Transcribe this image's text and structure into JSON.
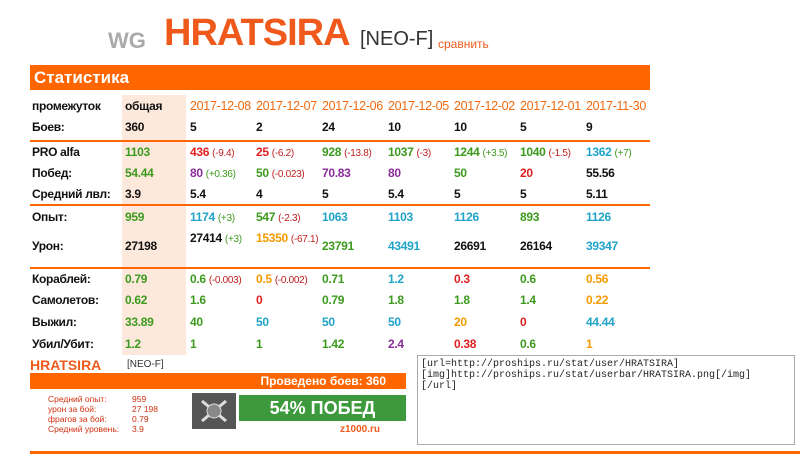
{
  "header": {
    "wg": "WG",
    "name": "HRATSIRA",
    "tag": "[NEO-F]",
    "compare": "сравнить"
  },
  "table": {
    "title": "Статистика",
    "header": [
      "промежуток",
      "общая",
      "2017-12-08",
      "2017-12-07",
      "2017-12-06",
      "2017-12-05",
      "2017-12-02",
      "2017-12-01",
      "2017-11-30"
    ],
    "rows": [
      {
        "label": "Боев:",
        "cells": [
          {
            "value": "360",
            "color": "#111"
          },
          {
            "value": "5",
            "color": "#111"
          },
          {
            "value": "2",
            "color": "#111"
          },
          {
            "value": "24",
            "color": "#111"
          },
          {
            "value": "10",
            "color": "#111"
          },
          {
            "value": "10",
            "color": "#111"
          },
          {
            "value": "5",
            "color": "#111"
          },
          {
            "value": "9",
            "color": "#111"
          }
        ]
      },
      {
        "label": "PRO alfa",
        "cells": [
          {
            "value": "1103",
            "color": "#3c9a1e"
          },
          {
            "value": "436",
            "delta": "(-9.4)",
            "color": "#e02020"
          },
          {
            "value": "25",
            "delta": "(-6.2)",
            "color": "#e02020"
          },
          {
            "value": "928",
            "delta": "(-13.8)",
            "color": "#3c9a1e"
          },
          {
            "value": "1037",
            "delta": "(-3)",
            "color": "#3c9a1e"
          },
          {
            "value": "1244",
            "delta": "(+3.5)",
            "color": "#3c9a1e"
          },
          {
            "value": "1040",
            "delta": "(-1.5)",
            "color": "#3c9a1e"
          },
          {
            "value": "1362",
            "delta": "(+7)",
            "color": "#1fa3c8"
          }
        ]
      },
      {
        "label": "Побед:",
        "cells": [
          {
            "value": "54.44",
            "color": "#3c9a1e"
          },
          {
            "value": "80",
            "delta": "(+0.36)",
            "color": "#8a2d9a"
          },
          {
            "value": "50",
            "delta": "(-0.023)",
            "color": "#3c9a1e"
          },
          {
            "value": "70.83",
            "color": "#8a2d9a"
          },
          {
            "value": "80",
            "color": "#8a2d9a"
          },
          {
            "value": "50",
            "color": "#3c9a1e"
          },
          {
            "value": "20",
            "color": "#e02020"
          },
          {
            "value": "55.56",
            "color": "#111"
          }
        ]
      },
      {
        "label": "Средний лвл:",
        "cells": [
          {
            "value": "3.9",
            "color": "#111"
          },
          {
            "value": "5.4",
            "color": "#111"
          },
          {
            "value": "4",
            "color": "#111"
          },
          {
            "value": "5",
            "color": "#111"
          },
          {
            "value": "5.4",
            "color": "#111"
          },
          {
            "value": "5",
            "color": "#111"
          },
          {
            "value": "5",
            "color": "#111"
          },
          {
            "value": "5.11",
            "color": "#111"
          }
        ]
      },
      {
        "label": "Опыт:",
        "cells": [
          {
            "value": "959",
            "color": "#3c9a1e"
          },
          {
            "value": "1174",
            "delta": "(+3)",
            "color": "#1fa3c8"
          },
          {
            "value": "547",
            "delta": "(-2.3)",
            "color": "#3c9a1e"
          },
          {
            "value": "1063",
            "color": "#1fa3c8"
          },
          {
            "value": "1103",
            "color": "#1fa3c8"
          },
          {
            "value": "1126",
            "color": "#1fa3c8"
          },
          {
            "value": "893",
            "color": "#3c9a1e"
          },
          {
            "value": "1126",
            "color": "#1fa3c8"
          }
        ]
      },
      {
        "label": "Урон:",
        "cells": [
          {
            "value": "27198",
            "color": "#111"
          },
          {
            "value": "27414",
            "delta": "(+3)",
            "color": "#111"
          },
          {
            "value": "15350",
            "delta": "(-67.1)",
            "color": "#f59a00"
          },
          {
            "value": "23791",
            "color": "#3c9a1e"
          },
          {
            "value": "43491",
            "color": "#1fa3c8"
          },
          {
            "value": "26691",
            "color": "#111"
          },
          {
            "value": "26164",
            "color": "#111"
          },
          {
            "value": "39347",
            "color": "#1fa3c8"
          }
        ]
      },
      {
        "label": "Кораблей:",
        "cells": [
          {
            "value": "0.79",
            "color": "#3c9a1e"
          },
          {
            "value": "0.6",
            "delta": "(-0.003)",
            "color": "#3c9a1e"
          },
          {
            "value": "0.5",
            "delta": "(-0.002)",
            "color": "#f59a00"
          },
          {
            "value": "0.71",
            "color": "#3c9a1e"
          },
          {
            "value": "1.2",
            "color": "#1fa3c8"
          },
          {
            "value": "0.3",
            "color": "#e02020"
          },
          {
            "value": "0.6",
            "color": "#3c9a1e"
          },
          {
            "value": "0.56",
            "color": "#f59a00"
          }
        ]
      },
      {
        "label": "Самолетов:",
        "cells": [
          {
            "value": "0.62",
            "color": "#3c9a1e"
          },
          {
            "value": "1.6",
            "color": "#3c9a1e"
          },
          {
            "value": "0",
            "color": "#e02020"
          },
          {
            "value": "0.79",
            "color": "#3c9a1e"
          },
          {
            "value": "1.8",
            "color": "#3c9a1e"
          },
          {
            "value": "1.8",
            "color": "#3c9a1e"
          },
          {
            "value": "1.4",
            "color": "#3c9a1e"
          },
          {
            "value": "0.22",
            "color": "#f59a00"
          }
        ]
      },
      {
        "label": "Выжил:",
        "cells": [
          {
            "value": "33.89",
            "color": "#3c9a1e"
          },
          {
            "value": "40",
            "color": "#3c9a1e"
          },
          {
            "value": "50",
            "color": "#1fa3c8"
          },
          {
            "value": "50",
            "color": "#1fa3c8"
          },
          {
            "value": "50",
            "color": "#1fa3c8"
          },
          {
            "value": "20",
            "color": "#f59a00"
          },
          {
            "value": "0",
            "color": "#e02020"
          },
          {
            "value": "44.44",
            "color": "#1fa3c8"
          }
        ]
      },
      {
        "label": "Убил/Убит:",
        "cells": [
          {
            "value": "1.2",
            "color": "#3c9a1e"
          },
          {
            "value": "1",
            "color": "#3c9a1e"
          },
          {
            "value": "1",
            "color": "#3c9a1e"
          },
          {
            "value": "1.42",
            "color": "#3c9a1e"
          },
          {
            "value": "2.4",
            "color": "#8a2d9a"
          },
          {
            "value": "0.38",
            "color": "#e02020"
          },
          {
            "value": "0.6",
            "color": "#3c9a1e"
          },
          {
            "value": "1",
            "color": "#f59a00"
          }
        ]
      }
    ]
  },
  "userbar": {
    "name": "HRATSIRA",
    "tag": "[NEO-F]",
    "battles": "Проведено боев: 360",
    "stats": [
      {
        "label": "Средний опыт:",
        "value": "959"
      },
      {
        "label": "урон за бой:",
        "value": "27 198"
      },
      {
        "label": "фрагов за бой:",
        "value": "0.79"
      },
      {
        "label": "Средний уровень:",
        "value": "3.9"
      }
    ],
    "wins": "54% ПОБЕД",
    "site": "z1000.ru"
  },
  "code": "[url=http://proships.ru/stat/user/HRATSIRA]\n[img]http://proships.ru/stat/userbar/HRATSIRA.png[/img]\n[/url]"
}
